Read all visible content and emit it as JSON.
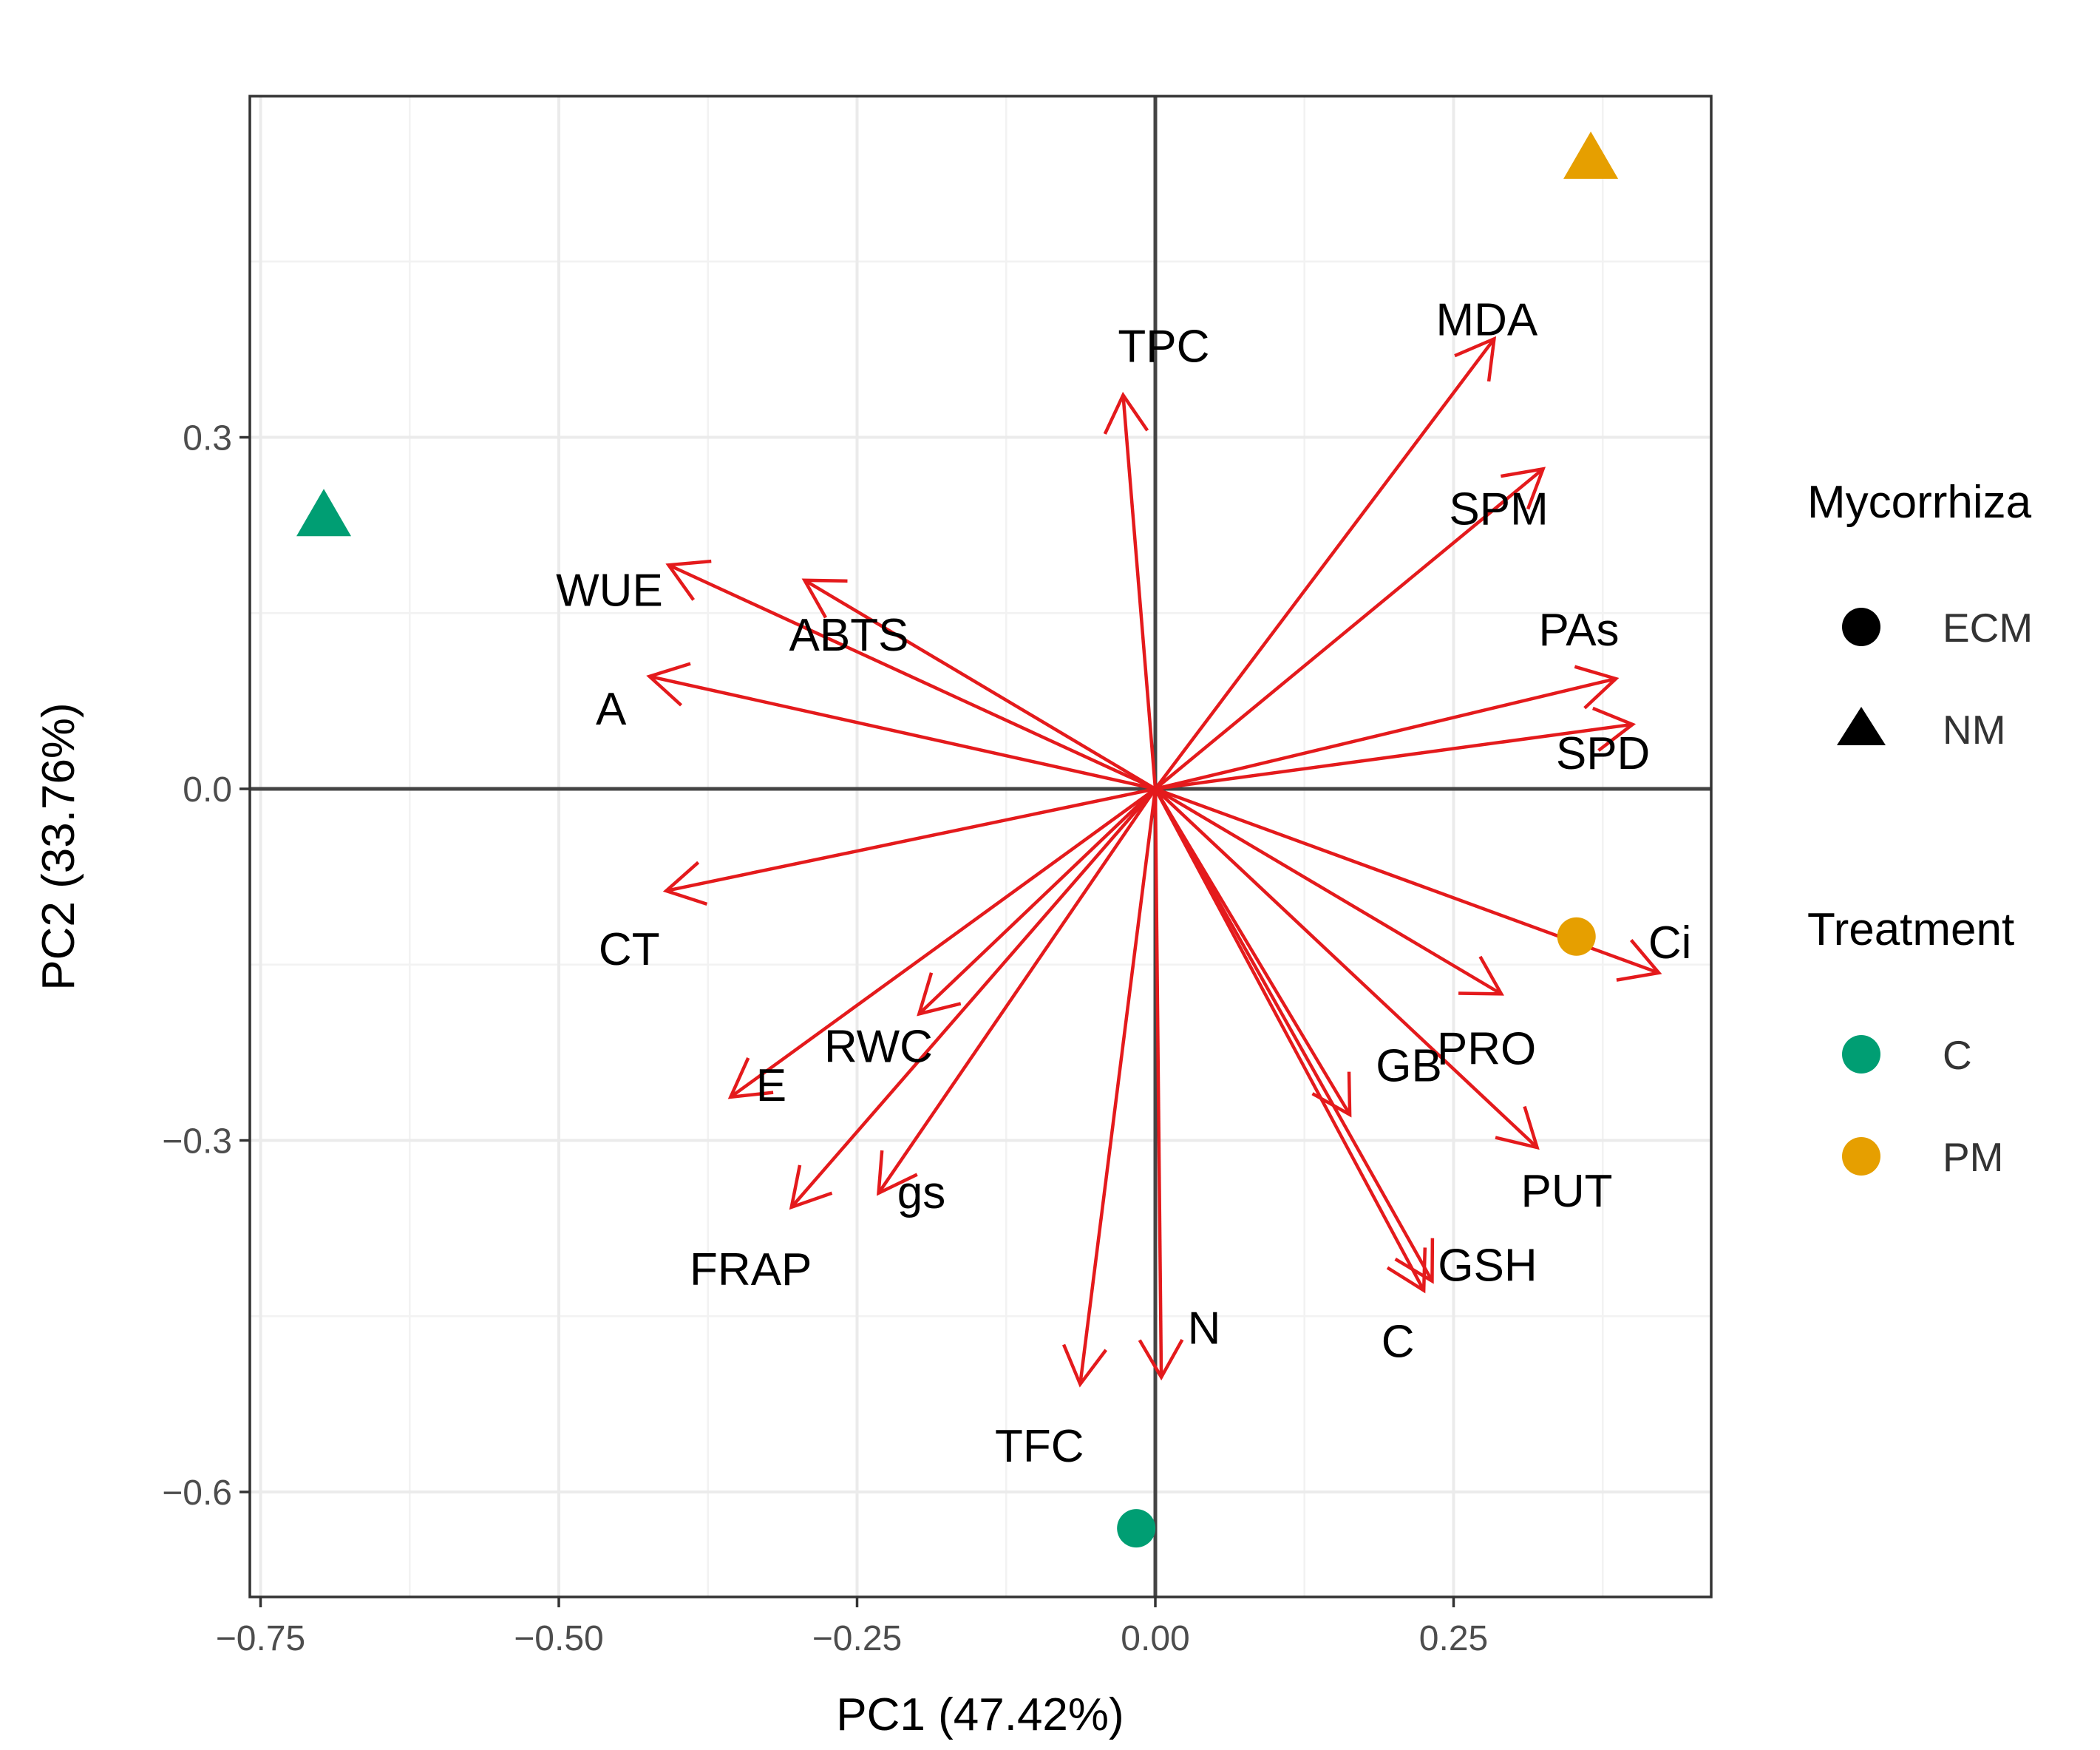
{
  "chart_data": {
    "type": "scatter",
    "subtype": "PCA biplot",
    "title": "",
    "xlabel": "PC1 (47.42%)",
    "ylabel": "PC2 (33.76%)",
    "xlim": [
      -0.765,
      0.445
    ],
    "ylim": [
      -0.685,
      0.59
    ],
    "grid": true,
    "major_xticks": [
      -0.75,
      -0.5,
      -0.25,
      0.0,
      0.25
    ],
    "major_xtick_labels": [
      "−0.75",
      "−0.50",
      "−0.25",
      "0.00",
      "0.25"
    ],
    "major_yticks": [
      0.3,
      0.0,
      -0.3,
      -0.6
    ],
    "major_ytick_labels": [
      "0.3",
      "0.0",
      "−0.3",
      "−0.6"
    ],
    "minor_xticks": [
      -0.625,
      -0.375,
      -0.125,
      0.125,
      0.375
    ],
    "minor_yticks": [
      0.45,
      0.15,
      -0.15,
      -0.45
    ],
    "reference_lines": {
      "x": 0,
      "y": 0
    },
    "points": [
      {
        "name": "NM-C",
        "x": -0.697,
        "y": 0.232,
        "shape": "triangle",
        "color": "#009E73"
      },
      {
        "name": "NM-PM",
        "x": 0.365,
        "y": 0.537,
        "shape": "triangle",
        "color": "#E69F00"
      },
      {
        "name": "ECM-C",
        "x": -0.016,
        "y": -0.631,
        "shape": "circle",
        "color": "#009E73"
      },
      {
        "name": "ECM-PM",
        "x": 0.353,
        "y": -0.126,
        "shape": "circle",
        "color": "#E69F00"
      }
    ],
    "loadings": [
      {
        "name": "TPC",
        "x": -0.027,
        "y": 0.336,
        "label": "TPC"
      },
      {
        "name": "MDA",
        "x": 0.284,
        "y": 0.384,
        "label": "MDA"
      },
      {
        "name": "SPM",
        "x": 0.325,
        "y": 0.273,
        "label": "SPM"
      },
      {
        "name": "WUE",
        "x": -0.408,
        "y": 0.191,
        "label": "WUE"
      },
      {
        "name": "ABTS",
        "x": -0.294,
        "y": 0.178,
        "label": "ABTS"
      },
      {
        "name": "A",
        "x": -0.424,
        "y": 0.096,
        "label": "A"
      },
      {
        "name": "PAs",
        "x": 0.386,
        "y": 0.094,
        "label": "PAs"
      },
      {
        "name": "SPD",
        "x": 0.4,
        "y": 0.055,
        "label": "SPD"
      },
      {
        "name": "CT",
        "x": -0.41,
        "y": -0.087,
        "label": "CT"
      },
      {
        "name": "Ci",
        "x": 0.422,
        "y": -0.157,
        "label": "Ci"
      },
      {
        "name": "PRO",
        "x": 0.29,
        "y": -0.175,
        "label": "PRO"
      },
      {
        "name": "RWC",
        "x": -0.198,
        "y": -0.192,
        "label": "RWC"
      },
      {
        "name": "E",
        "x": -0.356,
        "y": -0.263,
        "label": "E"
      },
      {
        "name": "GB",
        "x": 0.163,
        "y": -0.278,
        "label": "GB"
      },
      {
        "name": "PUT",
        "x": 0.32,
        "y": -0.306,
        "label": "PUT"
      },
      {
        "name": "gs",
        "x": -0.232,
        "y": -0.345,
        "label": "gs"
      },
      {
        "name": "FRAP",
        "x": -0.305,
        "y": -0.357,
        "label": "FRAP"
      },
      {
        "name": "GSH",
        "x": 0.232,
        "y": -0.42,
        "label": "GSH"
      },
      {
        "name": "C",
        "x": 0.225,
        "y": -0.428,
        "label": "C"
      },
      {
        "name": "N",
        "x": 0.005,
        "y": -0.502,
        "label": "N"
      },
      {
        "name": "TFC",
        "x": -0.063,
        "y": -0.508,
        "label": "TFC"
      }
    ],
    "arrow_color": "#E41A1C",
    "legend": {
      "position": "right",
      "groups": [
        {
          "title": "Mycorrhiza",
          "entries": [
            {
              "label": "ECM",
              "shape": "circle",
              "color": "#000000"
            },
            {
              "label": "NM",
              "shape": "triangle",
              "color": "#000000"
            }
          ]
        },
        {
          "title": "Treatment",
          "entries": [
            {
              "label": "C",
              "shape": "circle",
              "color": "#009E73"
            },
            {
              "label": "PM",
              "shape": "circle",
              "color": "#E69F00"
            }
          ]
        }
      ]
    }
  }
}
